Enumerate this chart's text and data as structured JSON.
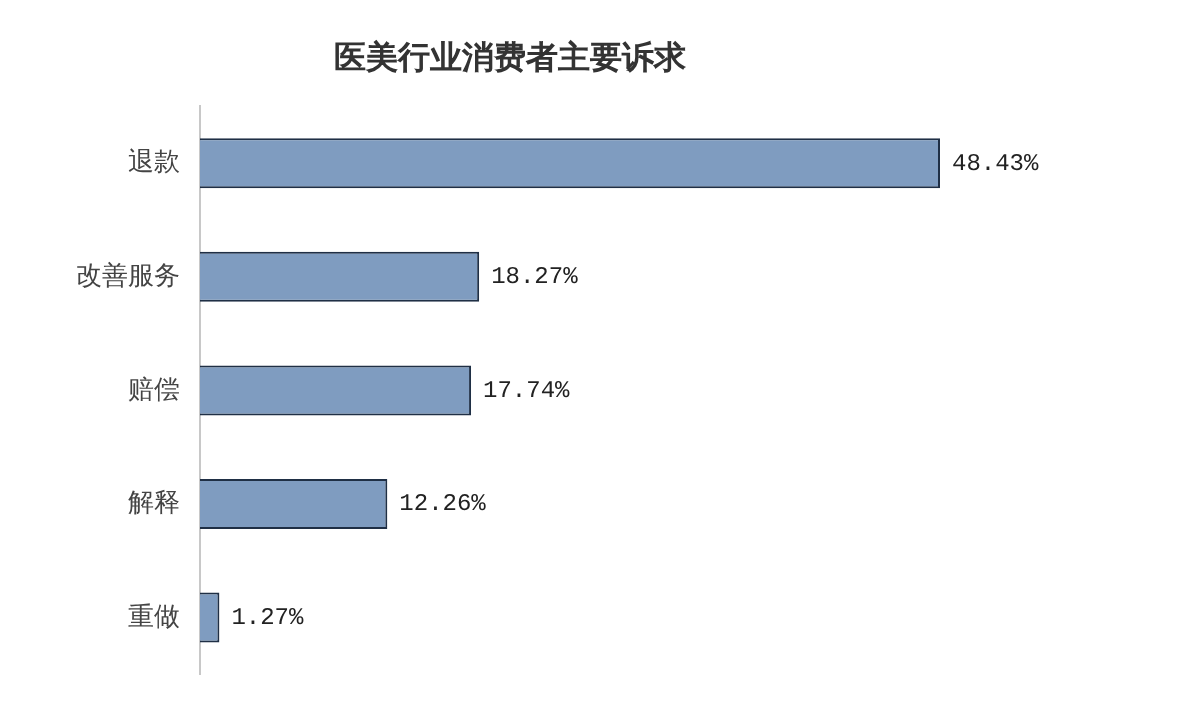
{
  "chart_data": {
    "type": "bar",
    "orientation": "horizontal",
    "title": "医美行业消费者主要诉求",
    "categories": [
      "退款",
      "改善服务",
      "赔偿",
      "解释",
      "重做"
    ],
    "values": [
      48.43,
      18.27,
      17.74,
      12.26,
      1.27
    ],
    "value_labels": [
      "48.43%",
      "18.27%",
      "17.74%",
      "12.26%",
      "1.27%"
    ],
    "color": "#7f9cc0"
  }
}
